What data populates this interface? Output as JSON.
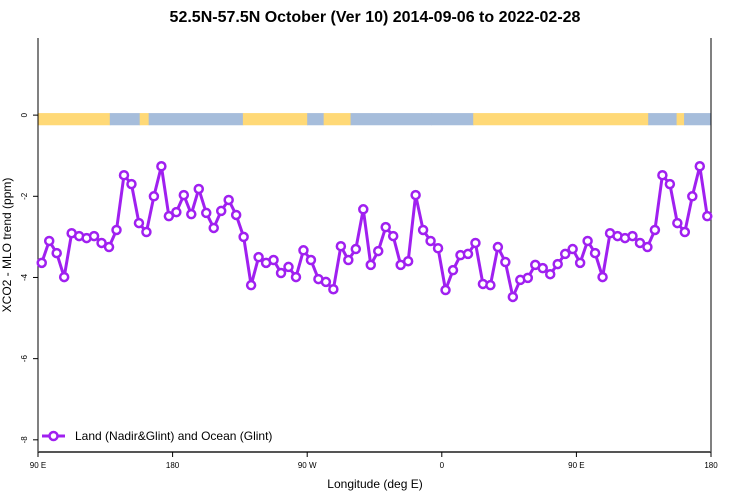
{
  "chart_data": {
    "type": "line",
    "title": "52.5N-57.5N October (Ver 10)   2014-09-06 to 2022-02-28",
    "xlabel": "Longitude (deg E)",
    "ylabel": "XCO2 - MLO trend (ppm)",
    "xlim_deg_unwrapped": [
      90,
      540
    ],
    "ylim": [
      -8.3,
      1.9
    ],
    "x_ticks": [
      {
        "value": 90,
        "label": "90 E"
      },
      {
        "value": 180,
        "label": "180"
      },
      {
        "value": 270,
        "label": "90 W"
      },
      {
        "value": 360,
        "label": "0"
      },
      {
        "value": 450,
        "label": "90 E"
      },
      {
        "value": 540,
        "label": "180"
      }
    ],
    "y_ticks": [
      {
        "value": 0,
        "label": "0"
      },
      {
        "value": -2,
        "label": "-2"
      },
      {
        "value": -4,
        "label": "-4"
      },
      {
        "value": -6,
        "label": "-6"
      },
      {
        "value": -8,
        "label": "-8"
      }
    ],
    "grid": false,
    "legend": {
      "placement": "bottom-left",
      "entries": [
        "Land (Nadir&Glint) and Ocean (Glint)"
      ]
    },
    "colors": {
      "series": "#A020F0",
      "land": "#FFD977",
      "ocean": "#A6BDDB"
    },
    "surface_strip": {
      "y_range": [
        0.05,
        -0.25
      ],
      "segments_lon_unwrapped": [
        {
          "from": 90,
          "to": 138,
          "type": "land"
        },
        {
          "from": 138,
          "to": 158,
          "type": "ocean"
        },
        {
          "from": 158,
          "to": 164,
          "type": "land"
        },
        {
          "from": 164,
          "to": 227,
          "type": "ocean"
        },
        {
          "from": 227,
          "to": 270,
          "type": "land"
        },
        {
          "from": 270,
          "to": 281,
          "type": "ocean"
        },
        {
          "from": 281,
          "to": 299,
          "type": "land"
        },
        {
          "from": 299,
          "to": 353,
          "type": "ocean"
        },
        {
          "from": 353,
          "to": 381,
          "type": "ocean"
        },
        {
          "from": 381,
          "to": 498,
          "type": "land"
        },
        {
          "from": 498,
          "to": 517,
          "type": "ocean"
        },
        {
          "from": 517,
          "to": 522,
          "type": "land"
        },
        {
          "from": 522,
          "to": 540,
          "type": "ocean"
        }
      ]
    },
    "series": [
      {
        "name": "Land (Nadir&Glint) and Ocean (Glint)",
        "x_start": 92.5,
        "x_step": 5,
        "values": [
          -3.64,
          -3.1,
          -3.4,
          -3.99,
          -2.91,
          -2.98,
          -3.03,
          -2.98,
          -3.15,
          -3.25,
          -2.83,
          -1.48,
          -1.7,
          -2.66,
          -2.88,
          -2.0,
          -1.26,
          -2.49,
          -2.39,
          -1.97,
          -2.44,
          -1.82,
          -2.41,
          -2.78,
          -2.36,
          -2.09,
          -2.46,
          -3.0,
          -4.19,
          -3.5,
          -3.64,
          -3.57,
          -3.89,
          -3.74,
          -3.99,
          -3.33,
          -3.57,
          -4.04,
          -4.11,
          -4.29,
          -3.23,
          -3.57,
          -3.3,
          -2.32,
          -3.69,
          -3.35,
          -2.76,
          -2.98,
          -3.69,
          -3.6,
          -1.97,
          -2.83,
          -3.1,
          -3.28,
          -4.31,
          -3.82,
          -3.45,
          -3.42,
          -3.15,
          -4.16,
          -4.19,
          -3.25,
          -3.62,
          -4.48,
          -4.06,
          -4.01,
          -3.69,
          -3.77,
          -3.92,
          -3.67,
          -3.42,
          -3.3,
          -3.64,
          -3.1,
          -3.4,
          -3.99,
          -2.91,
          -2.98,
          -3.03,
          -2.98,
          -3.15,
          -3.25,
          -2.83,
          -1.48,
          -1.7,
          -2.66,
          -2.88,
          -2.0,
          -1.26,
          -2.49
        ]
      }
    ]
  }
}
